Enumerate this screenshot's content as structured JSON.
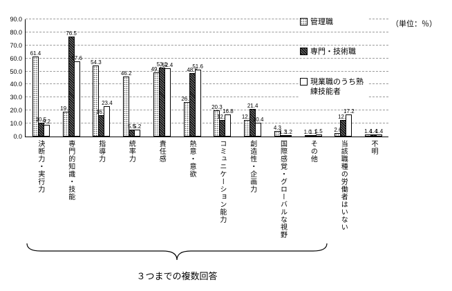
{
  "unit_label": "（単位：％）",
  "chart_data": {
    "type": "bar",
    "title": "",
    "xlabel": "",
    "ylabel": "",
    "ylim": [
      0,
      90
    ],
    "ytick_step": 10,
    "yticks": [
      "90.0",
      "80.0",
      "70.0",
      "60.0",
      "50.0",
      "40.0",
      "30.0",
      "20.0",
      "10.0",
      "0.0"
    ],
    "grid": "horizontal-dashed",
    "legend_position": "right",
    "categories": [
      "決断力・実行力",
      "専門的知識・技能",
      "指導力",
      "統率力",
      "責任感",
      "熱意・意欲",
      "コミュニケーション能力",
      "創造性・企画力",
      "国際感覚・グローバルな視野",
      "その他",
      "当該職種の労働者はいない",
      "不明"
    ],
    "series": [
      {
        "name": "管理職",
        "pattern": "dots",
        "values": [
          61.4,
          19.1,
          54.3,
          46.2,
          49.4,
          26.7,
          20.3,
          12.6,
          4.3,
          1.0,
          2.6,
          1.4
        ]
      },
      {
        "name": "専門・技術職",
        "pattern": "dark-hatch",
        "values": [
          10.5,
          76.5,
          16.5,
          5.5,
          53.1,
          48.6,
          12.5,
          21.4,
          1.3,
          1.1,
          12.6,
          1.4
        ]
      },
      {
        "name": "現業職のうち熟練技能者",
        "pattern": "plain",
        "values": [
          9.2,
          57.6,
          23.4,
          5.2,
          52.4,
          51.6,
          16.8,
          10.4,
          1.2,
          1.5,
          17.2,
          1.4
        ]
      }
    ],
    "multiple_answer_note": "３つまでの複数回答",
    "colors": {
      "axis": "#000000",
      "grid": "#999999",
      "bar_border": "#000000",
      "dark_fill": "#1a1a1a"
    }
  }
}
